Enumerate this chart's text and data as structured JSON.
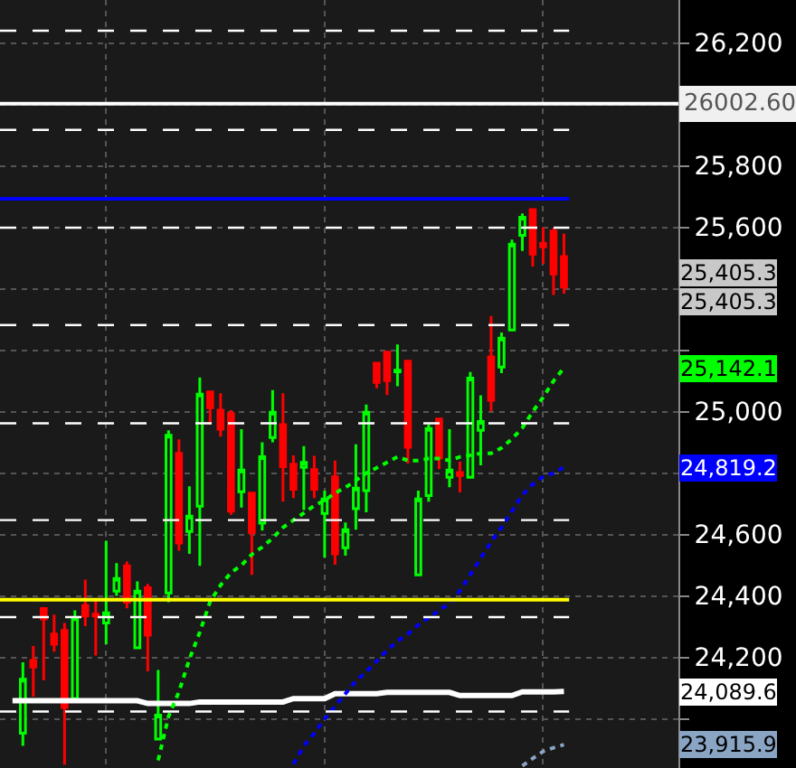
{
  "chart_data": {
    "type": "candlestick",
    "categories": [
      null,
      null,
      null,
      null,
      null,
      null,
      null,
      null,
      null,
      null,
      null,
      null,
      null,
      null,
      null,
      null,
      null,
      null,
      null,
      null,
      null,
      null,
      null,
      null,
      null,
      null,
      null,
      null,
      null,
      null,
      null,
      null,
      null,
      null,
      null,
      null,
      null,
      null,
      null,
      null,
      null,
      null,
      null,
      null,
      null,
      null,
      null,
      null,
      null,
      null,
      null,
      null,
      null,
      null
    ],
    "series": [
      {
        "ohlc": [
          null,
          [
            23953,
            24184,
            23912,
            24129
          ],
          [
            24190,
            24237,
            24072,
            24169
          ],
          [
            24359,
            24359,
            24125,
            24325
          ],
          [
            24276,
            24339,
            24219,
            24243
          ],
          [
            24288,
            24312,
            23851,
            24037
          ],
          [
            24066,
            24353,
            24057,
            24329
          ],
          [
            24369,
            24453,
            24302,
            24335
          ],
          [
            24341,
            24388,
            24206,
            24335
          ],
          [
            24312,
            24580,
            24243,
            24345
          ],
          [
            24416,
            24507,
            24400,
            24457
          ],
          [
            24498,
            24512,
            24360,
            24380
          ],
          [
            24231,
            24447,
            24227,
            24416
          ],
          [
            24427,
            24439,
            24155,
            24272
          ],
          [
            23934,
            24159,
            23934,
            24012
          ],
          [
            24410,
            24939,
            24380,
            24923
          ],
          [
            24864,
            24910,
            24547,
            24572
          ],
          [
            24610,
            24757,
            24537,
            24660
          ],
          [
            24692,
            25111,
            24498,
            25057
          ],
          [
            25064,
            25064,
            24958,
            25013
          ],
          [
            25005,
            25060,
            24919,
            24943
          ],
          [
            24994,
            25005,
            24664,
            24676
          ],
          [
            24739,
            24943,
            24688,
            24810
          ],
          [
            24735,
            24735,
            24469,
            24606
          ],
          [
            24637,
            24900,
            24613,
            24853
          ],
          [
            24916,
            25070,
            24900,
            24998
          ],
          [
            24958,
            25060,
            24707,
            24821
          ],
          [
            24829,
            24858,
            24719,
            24747
          ],
          [
            24819,
            24888,
            24680,
            24835
          ],
          [
            24811,
            24856,
            24719,
            24747
          ],
          [
            24669,
            24743,
            24525,
            24716
          ],
          [
            24788,
            24841,
            24502,
            24537
          ],
          [
            24557,
            24639,
            24531,
            24616
          ],
          [
            24684,
            24894,
            24616,
            24751
          ],
          [
            24743,
            25023,
            24672,
            24998
          ],
          [
            25158,
            25158,
            25076,
            25095
          ],
          [
            25194,
            25194,
            25054,
            25101
          ],
          [
            25130,
            25219,
            25083,
            25135
          ],
          [
            25164,
            25164,
            24831,
            24884
          ],
          [
            24469,
            24743,
            24469,
            24716
          ],
          [
            24727,
            24958,
            24707,
            24945
          ],
          [
            24976,
            24976,
            24813,
            24849
          ],
          [
            24786,
            24943,
            24754,
            24810
          ],
          [
            24802,
            24837,
            24737,
            24792
          ],
          [
            24786,
            25129,
            24786,
            25109
          ],
          [
            24939,
            25053,
            24825,
            24968
          ],
          [
            25178,
            25311,
            25001,
            25037
          ],
          [
            25145,
            25258,
            25125,
            25239
          ],
          [
            25266,
            25560,
            25262,
            25545
          ],
          [
            25574,
            25645,
            25523,
            25633
          ],
          [
            25658,
            25658,
            25472,
            25513
          ],
          [
            25548,
            25600,
            25482,
            25536
          ],
          [
            25588,
            25599,
            25380,
            25448
          ],
          [
            25505,
            25580,
            25384,
            25405.3
          ]
        ],
        "colors": [
          null,
          "#00ff00",
          "#ff0000",
          "#ff0000",
          "#ff0000",
          "#ff0000",
          "#00ff00",
          "#ff0000",
          "#ff0000",
          "#00ff00",
          "#00ff00",
          "#ff0000",
          "#00ff00",
          "#ff0000",
          "#00ff00",
          "#00ff00",
          "#ff0000",
          "#00ff00",
          "#00ff00",
          "#ff0000",
          "#ff0000",
          "#ff0000",
          "#00ff00",
          "#ff0000",
          "#00ff00",
          "#00ff00",
          "#ff0000",
          "#ff0000",
          "#00ff00",
          "#ff0000",
          "#00ff00",
          "#ff0000",
          "#00ff00",
          "#00ff00",
          "#00ff00",
          "#ff0000",
          "#ff0000",
          "#00ff00",
          "#ff0000",
          "#00ff00",
          "#00ff00",
          "#ff0000",
          "#00ff00",
          "#ff0000",
          "#00ff00",
          "#00ff00",
          "#ff0000",
          "#00ff00",
          "#00ff00",
          "#00ff00",
          "#ff0000",
          "#ff0000",
          "#ff0000",
          "#ff0000"
        ]
      },
      {
        "type": "line",
        "color": "#ffffff",
        "line_style": "solid",
        "values": [
          24059,
          24059,
          24059,
          24059,
          24059,
          24059,
          24059,
          24059,
          24059,
          24059,
          24059,
          24059,
          24059,
          24050,
          24050,
          24050,
          24050,
          24050,
          24055,
          24055,
          24055,
          24055,
          24055,
          24055,
          24055,
          24055,
          24055,
          24066,
          24066,
          24066,
          24066,
          24082,
          24082,
          24082,
          24082,
          24082,
          24086,
          24086,
          24086,
          24086,
          24086,
          24086,
          24086,
          24076,
          24076,
          24076,
          24076,
          24076,
          24076,
          24088,
          24088,
          24088,
          24088,
          24089.6
        ]
      },
      {
        "type": "line",
        "color": "#00ff00",
        "line_style": "dotted",
        "values": [
          null,
          null,
          null,
          null,
          null,
          null,
          null,
          null,
          null,
          null,
          null,
          null,
          null,
          null,
          23865,
          24008,
          24088,
          24194,
          24282,
          24382,
          24435,
          24476,
          24500,
          24535,
          24559,
          24588,
          24623,
          24647,
          24670,
          24694,
          24711,
          24735,
          24753,
          24776,
          24800,
          24817,
          24835,
          24853,
          24841,
          24841,
          24847,
          24847,
          24841,
          24853,
          24858,
          24864,
          24864,
          24882,
          24911,
          24947,
          25000,
          25047,
          25100,
          25142.1
        ]
      },
      {
        "type": "line",
        "color": "#0000ff",
        "line_style": "dotted",
        "values": [
          null,
          null,
          null,
          null,
          null,
          null,
          null,
          null,
          null,
          null,
          null,
          null,
          null,
          null,
          null,
          null,
          null,
          null,
          null,
          null,
          null,
          null,
          null,
          null,
          null,
          null,
          null,
          23853,
          23912,
          23953,
          24000,
          24041,
          24082,
          24123,
          24153,
          24188,
          24223,
          24253,
          24276,
          24306,
          24329,
          24353,
          24376,
          24417,
          24470,
          24523,
          24576,
          24623,
          24676,
          24729,
          24764,
          24788,
          24800,
          24819.2
        ]
      },
      {
        "type": "line",
        "color": "#8aa4c4",
        "line_style": "dotted",
        "values": [
          null,
          null,
          null,
          null,
          null,
          null,
          null,
          null,
          null,
          null,
          null,
          null,
          null,
          null,
          null,
          null,
          null,
          null,
          null,
          null,
          null,
          null,
          null,
          null,
          null,
          null,
          null,
          null,
          null,
          null,
          null,
          null,
          null,
          null,
          null,
          null,
          null,
          null,
          null,
          null,
          null,
          null,
          null,
          null,
          null,
          null,
          null,
          null,
          null,
          23847,
          23871,
          23894,
          23906,
          23915.9
        ]
      }
    ],
    "ylim": [
      23840,
      26340
    ],
    "yticks": [
      {
        "value": 24000,
        "label": null
      },
      {
        "value": 24200,
        "label": "24,200"
      },
      {
        "value": 24400,
        "label": "24,400"
      },
      {
        "value": 24600,
        "label": "24,600"
      },
      {
        "value": 24800,
        "label": null
      },
      {
        "value": 25000,
        "label": "25,000"
      },
      {
        "value": 25200,
        "label": null
      },
      {
        "value": 25400,
        "label": null
      },
      {
        "value": 25600,
        "label": "25,600"
      },
      {
        "value": 25800,
        "label": "25,800"
      },
      {
        "value": 26000,
        "label": null
      },
      {
        "value": 26200,
        "label": "26,200"
      }
    ],
    "grid": true,
    "ref_lines": [
      {
        "axis": "y",
        "value": 26240,
        "color": "#ffffff",
        "line_style": "dashed"
      },
      {
        "axis": "y",
        "value": 25917,
        "color": "#ffffff",
        "line_style": "dashed"
      },
      {
        "axis": "y",
        "value": 25599,
        "color": "#ffffff",
        "line_style": "dashed"
      },
      {
        "axis": "y",
        "value": 25282,
        "color": "#ffffff",
        "line_style": "dashed"
      },
      {
        "axis": "y",
        "value": 24962,
        "color": "#ffffff",
        "line_style": "dashed"
      },
      {
        "axis": "y",
        "value": 24647,
        "color": "#ffffff",
        "line_style": "dashed"
      },
      {
        "axis": "y",
        "value": 24331,
        "color": "#ffffff",
        "line_style": "dashed"
      },
      {
        "axis": "y",
        "value": 24024,
        "color": "#ffffff",
        "line_style": "dashed"
      },
      {
        "axis": "y",
        "value": 25693,
        "color": "#0000ff",
        "line_style": "solid"
      },
      {
        "axis": "y",
        "value": 24388,
        "color": "#ffff00",
        "line_style": "solid"
      },
      {
        "axis": "y",
        "value": 26002.6,
        "label": "26002.60",
        "color": "#ffffff",
        "line_style": "solid"
      }
    ],
    "annotations": [
      "25,405.3",
      "25,405.3",
      "24,089.6",
      "25,142.1",
      "24,819.2",
      "23,915.9"
    ]
  }
}
